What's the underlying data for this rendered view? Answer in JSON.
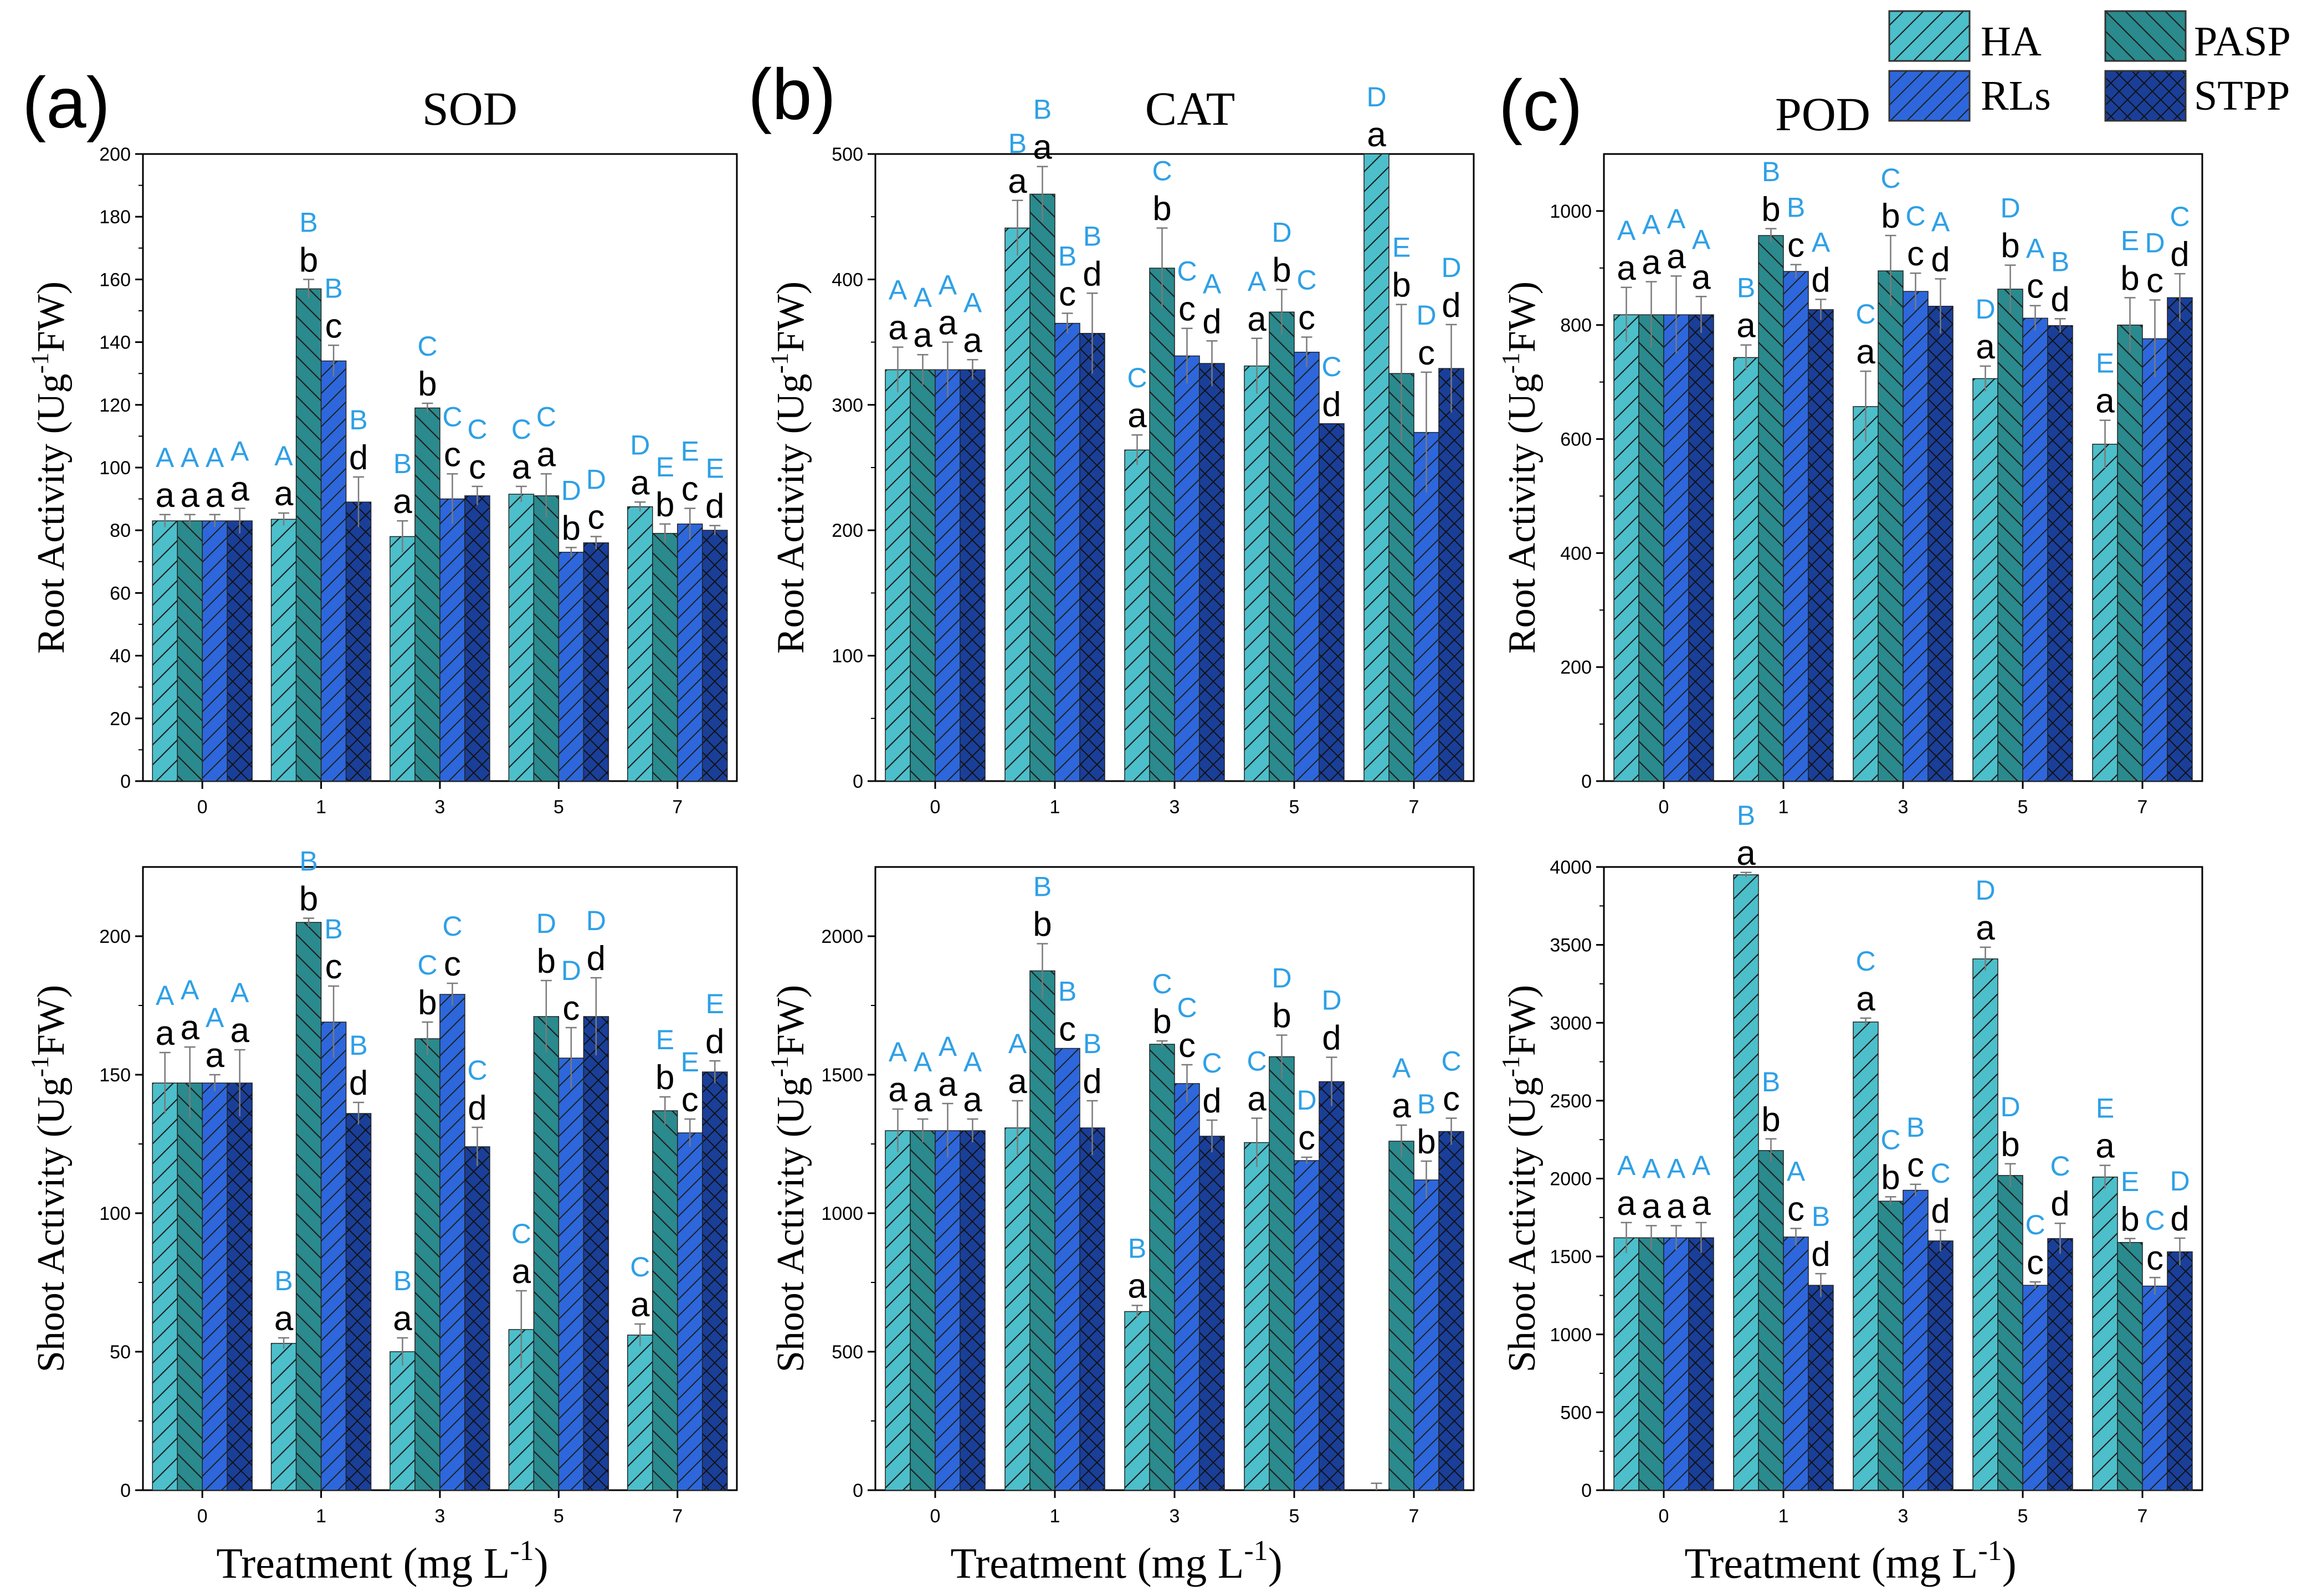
{
  "panel_labels": [
    "(a)",
    "(b)",
    "(c)"
  ],
  "xlabel": "Treatment (mg L",
  "xlabel_sup": "-1",
  "xlabel_end": ")",
  "legend": [
    "HA",
    "PASP",
    "RLs",
    "STPP"
  ],
  "colors": {
    "HA": "#4cbfca",
    "PASP": "#2a8a8d",
    "RLs": "#2d67db",
    "STPP": "#1a3f99",
    "upper_letter": "#2ea0e6",
    "lower_letter": "#000000",
    "errbar": "#7a7a7a"
  },
  "chart_data": [
    {
      "type": "bar",
      "id": "a-root",
      "title": "SOD",
      "ylabel": "Root Activity (Ug",
      "ylabel_sup": "-1",
      "ylabel_end": "FW)",
      "categories": [
        "0",
        "1",
        "3",
        "5",
        "7"
      ],
      "ylim": [
        0,
        200
      ],
      "yticks": [
        0,
        20,
        40,
        60,
        80,
        100,
        120,
        140,
        160,
        180,
        200
      ],
      "series": [
        {
          "name": "HA",
          "values": [
            83,
            83.5,
            78,
            91.5,
            87.5
          ],
          "errors": [
            2,
            2,
            5,
            2.5,
            1.5
          ],
          "lower": [
            "a",
            "a",
            "a",
            "a",
            "a"
          ],
          "upper": [
            "A",
            "A",
            "B",
            "C",
            "D"
          ]
        },
        {
          "name": "PASP",
          "values": [
            83,
            157,
            119,
            91,
            79
          ],
          "errors": [
            2,
            3,
            1.5,
            7,
            3
          ],
          "lower": [
            "a",
            "b",
            "b",
            "a",
            "b"
          ],
          "upper": [
            "A",
            "B",
            "C",
            "C",
            "E"
          ]
        },
        {
          "name": "RLs",
          "values": [
            83,
            134,
            90,
            73,
            82
          ],
          "errors": [
            2,
            5,
            8,
            1.5,
            5
          ],
          "lower": [
            "a",
            "c",
            "c",
            "b",
            "c"
          ],
          "upper": [
            "A",
            "B",
            "C",
            "D",
            "E"
          ]
        },
        {
          "name": "STPP",
          "values": [
            83,
            89,
            91,
            76,
            80
          ],
          "errors": [
            4,
            8,
            3,
            2,
            1.5
          ],
          "lower": [
            "a",
            "d",
            "c",
            "c",
            "d"
          ],
          "upper": [
            "A",
            "B",
            "C",
            "D",
            "E"
          ]
        }
      ]
    },
    {
      "type": "bar",
      "id": "b-root",
      "title": "CAT",
      "ylabel": "Root Activity (Ug",
      "ylabel_sup": "-1",
      "ylabel_end": "FW)",
      "categories": [
        "0",
        "1",
        "3",
        "5",
        "7"
      ],
      "ylim": [
        0,
        500
      ],
      "yticks": [
        0,
        100,
        200,
        300,
        400,
        500
      ],
      "series": [
        {
          "name": "HA",
          "values": [
            328,
            441,
            264,
            331,
            500
          ],
          "errors": [
            18,
            22,
            12,
            22,
            0
          ],
          "lower": [
            "a",
            "a",
            "a",
            "a",
            "a"
          ],
          "upper": [
            "A",
            "B",
            "C",
            "A",
            "D"
          ]
        },
        {
          "name": "PASP",
          "values": [
            328,
            468,
            409,
            374,
            325
          ],
          "errors": [
            12,
            22,
            32,
            18,
            55
          ],
          "lower": [
            "a",
            "a",
            "b",
            "b",
            "b"
          ],
          "upper": [
            "A",
            "B",
            "C",
            "D",
            "E"
          ]
        },
        {
          "name": "RLs",
          "values": [
            328,
            365,
            339,
            342,
            278
          ],
          "errors": [
            22,
            8,
            22,
            12,
            48
          ],
          "lower": [
            "a",
            "c",
            "c",
            "c",
            "c"
          ],
          "upper": [
            "A",
            "B",
            "C",
            "C",
            "D"
          ]
        },
        {
          "name": "STPP",
          "values": [
            328,
            357,
            333,
            285,
            329
          ],
          "errors": [
            8,
            32,
            18,
            0,
            35
          ],
          "lower": [
            "a",
            "d",
            "d",
            "d",
            "d"
          ],
          "upper": [
            "A",
            "B",
            "A",
            "C",
            "D"
          ]
        }
      ]
    },
    {
      "type": "bar",
      "id": "c-root",
      "title": "POD",
      "ylabel": "Root Activity (Ug",
      "ylabel_sup": "-1",
      "ylabel_end": "FW)",
      "categories": [
        "0",
        "1",
        "3",
        "5",
        "7"
      ],
      "ylim": [
        0,
        1100
      ],
      "yticks": [
        0,
        200,
        400,
        600,
        800,
        1000
      ],
      "series": [
        {
          "name": "HA",
          "values": [
            818,
            743,
            657,
            706,
            591
          ],
          "errors": [
            48,
            22,
            62,
            22,
            42
          ],
          "lower": [
            "a",
            "a",
            "a",
            "a",
            "a"
          ],
          "upper": [
            "A",
            "B",
            "C",
            "D",
            "E"
          ]
        },
        {
          "name": "PASP",
          "values": [
            818,
            957,
            895,
            863,
            800
          ],
          "errors": [
            58,
            12,
            62,
            42,
            48
          ],
          "lower": [
            "a",
            "b",
            "b",
            "b",
            "b"
          ],
          "upper": [
            "A",
            "B",
            "C",
            "D",
            "E"
          ]
        },
        {
          "name": "RLs",
          "values": [
            818,
            894,
            859,
            812,
            776
          ],
          "errors": [
            68,
            12,
            32,
            22,
            68
          ],
          "lower": [
            "a",
            "c",
            "c",
            "c",
            "c"
          ],
          "upper": [
            "A",
            "B",
            "C",
            "A",
            "D"
          ]
        },
        {
          "name": "STPP",
          "values": [
            818,
            827,
            833,
            799,
            848
          ],
          "errors": [
            32,
            18,
            48,
            12,
            42
          ],
          "lower": [
            "a",
            "d",
            "d",
            "d",
            "d"
          ],
          "upper": [
            "A",
            "A",
            "A",
            "B",
            "C"
          ]
        }
      ]
    },
    {
      "type": "bar",
      "id": "a-shoot",
      "title": "",
      "ylabel": "Shoot Activity (Ug",
      "ylabel_sup": "-1",
      "ylabel_end": "FW)",
      "categories": [
        "0",
        "1",
        "3",
        "5",
        "7"
      ],
      "ylim": [
        0,
        225
      ],
      "yticks": [
        0,
        50,
        100,
        150,
        200
      ],
      "series": [
        {
          "name": "HA",
          "values": [
            147,
            53,
            50,
            58,
            56
          ],
          "errors": [
            11,
            2,
            5,
            14,
            4
          ],
          "lower": [
            "a",
            "a",
            "a",
            "a",
            "a"
          ],
          "upper": [
            "A",
            "B",
            "B",
            "C",
            "C"
          ]
        },
        {
          "name": "PASP",
          "values": [
            147,
            205,
            163,
            171,
            137
          ],
          "errors": [
            13,
            1.5,
            6,
            13,
            5
          ],
          "lower": [
            "a",
            "b",
            "b",
            "b",
            "b"
          ],
          "upper": [
            "A",
            "B",
            "C",
            "D",
            "E"
          ]
        },
        {
          "name": "RLs",
          "values": [
            147,
            169,
            179,
            156,
            129
          ],
          "errors": [
            3,
            13,
            4,
            11,
            5
          ],
          "lower": [
            "a",
            "c",
            "c",
            "c",
            "c"
          ],
          "upper": [
            "A",
            "B",
            "C",
            "D",
            "E"
          ]
        },
        {
          "name": "STPP",
          "values": [
            147,
            136,
            124,
            171,
            151
          ],
          "errors": [
            12,
            4,
            7,
            14,
            4
          ],
          "lower": [
            "a",
            "d",
            "d",
            "d",
            "d"
          ],
          "upper": [
            "A",
            "B",
            "C",
            "D",
            "E"
          ]
        }
      ]
    },
    {
      "type": "bar",
      "id": "b-shoot",
      "title": "",
      "ylabel": "Shoot Activity (Ug",
      "ylabel_sup": "-1",
      "ylabel_end": "FW)",
      "categories": [
        "0",
        "1",
        "3",
        "5",
        "7"
      ],
      "ylim": [
        0,
        2250
      ],
      "yticks": [
        0,
        500,
        1000,
        1500,
        2000
      ],
      "series": [
        {
          "name": "HA",
          "values": [
            1298,
            1308,
            645,
            1255,
            0
          ],
          "errors": [
            78,
            98,
            22,
            88,
            25
          ],
          "lower": [
            "a",
            "a",
            "a",
            "a",
            ""
          ],
          "upper": [
            "A",
            "A",
            "B",
            "C",
            ""
          ]
        },
        {
          "name": "PASP",
          "values": [
            1298,
            1875,
            1610,
            1565,
            1260
          ],
          "errors": [
            42,
            98,
            12,
            78,
            58
          ],
          "lower": [
            "a",
            "b",
            "b",
            "b",
            "a"
          ],
          "upper": [
            "A",
            "B",
            "C",
            "D",
            "A"
          ]
        },
        {
          "name": "RLs",
          "values": [
            1298,
            1595,
            1468,
            1190,
            1120
          ],
          "errors": [
            98,
            0,
            68,
            12,
            68
          ],
          "lower": [
            "a",
            "c",
            "c",
            "c",
            "b"
          ],
          "upper": [
            "A",
            "B",
            "C",
            "D",
            "B"
          ]
        },
        {
          "name": "STPP",
          "values": [
            1298,
            1308,
            1278,
            1475,
            1295
          ],
          "errors": [
            42,
            98,
            58,
            88,
            48
          ],
          "lower": [
            "a",
            "d",
            "d",
            "d",
            "c"
          ],
          "upper": [
            "A",
            "B",
            "C",
            "D",
            "C"
          ]
        }
      ]
    },
    {
      "type": "bar",
      "id": "c-shoot",
      "title": "",
      "ylabel": "Shoot Activity (Ug",
      "ylabel_sup": "-1",
      "ylabel_end": "FW)",
      "categories": [
        "0",
        "1",
        "3",
        "5",
        "7"
      ],
      "ylim": [
        0,
        4000
      ],
      "yticks": [
        0,
        500,
        1000,
        1500,
        2000,
        2500,
        3000,
        3500,
        4000
      ],
      "series": [
        {
          "name": "HA",
          "values": [
            1620,
            3950,
            3005,
            3410,
            2010
          ],
          "errors": [
            98,
            15,
            25,
            75,
            75
          ],
          "lower": [
            "a",
            "a",
            "a",
            "a",
            "a"
          ],
          "upper": [
            "A",
            "B",
            "C",
            "D",
            "E"
          ]
        },
        {
          "name": "PASP",
          "values": [
            1620,
            2180,
            1855,
            2020,
            1590
          ],
          "errors": [
            78,
            75,
            28,
            75,
            25
          ],
          "lower": [
            "a",
            "b",
            "b",
            "b",
            "b"
          ],
          "upper": [
            "A",
            "B",
            "C",
            "D",
            "E"
          ]
        },
        {
          "name": "RLs",
          "values": [
            1620,
            1625,
            1925,
            1315,
            1310
          ],
          "errors": [
            78,
            55,
            38,
            22,
            55
          ],
          "lower": [
            "a",
            "c",
            "c",
            "c",
            "c"
          ],
          "upper": [
            "A",
            "A",
            "B",
            "C",
            "C"
          ]
        },
        {
          "name": "STPP",
          "values": [
            1620,
            1315,
            1600,
            1615,
            1530
          ],
          "errors": [
            98,
            75,
            68,
            98,
            88
          ],
          "lower": [
            "a",
            "d",
            "d",
            "d",
            "d"
          ],
          "upper": [
            "A",
            "B",
            "C",
            "C",
            "D"
          ]
        }
      ]
    }
  ]
}
